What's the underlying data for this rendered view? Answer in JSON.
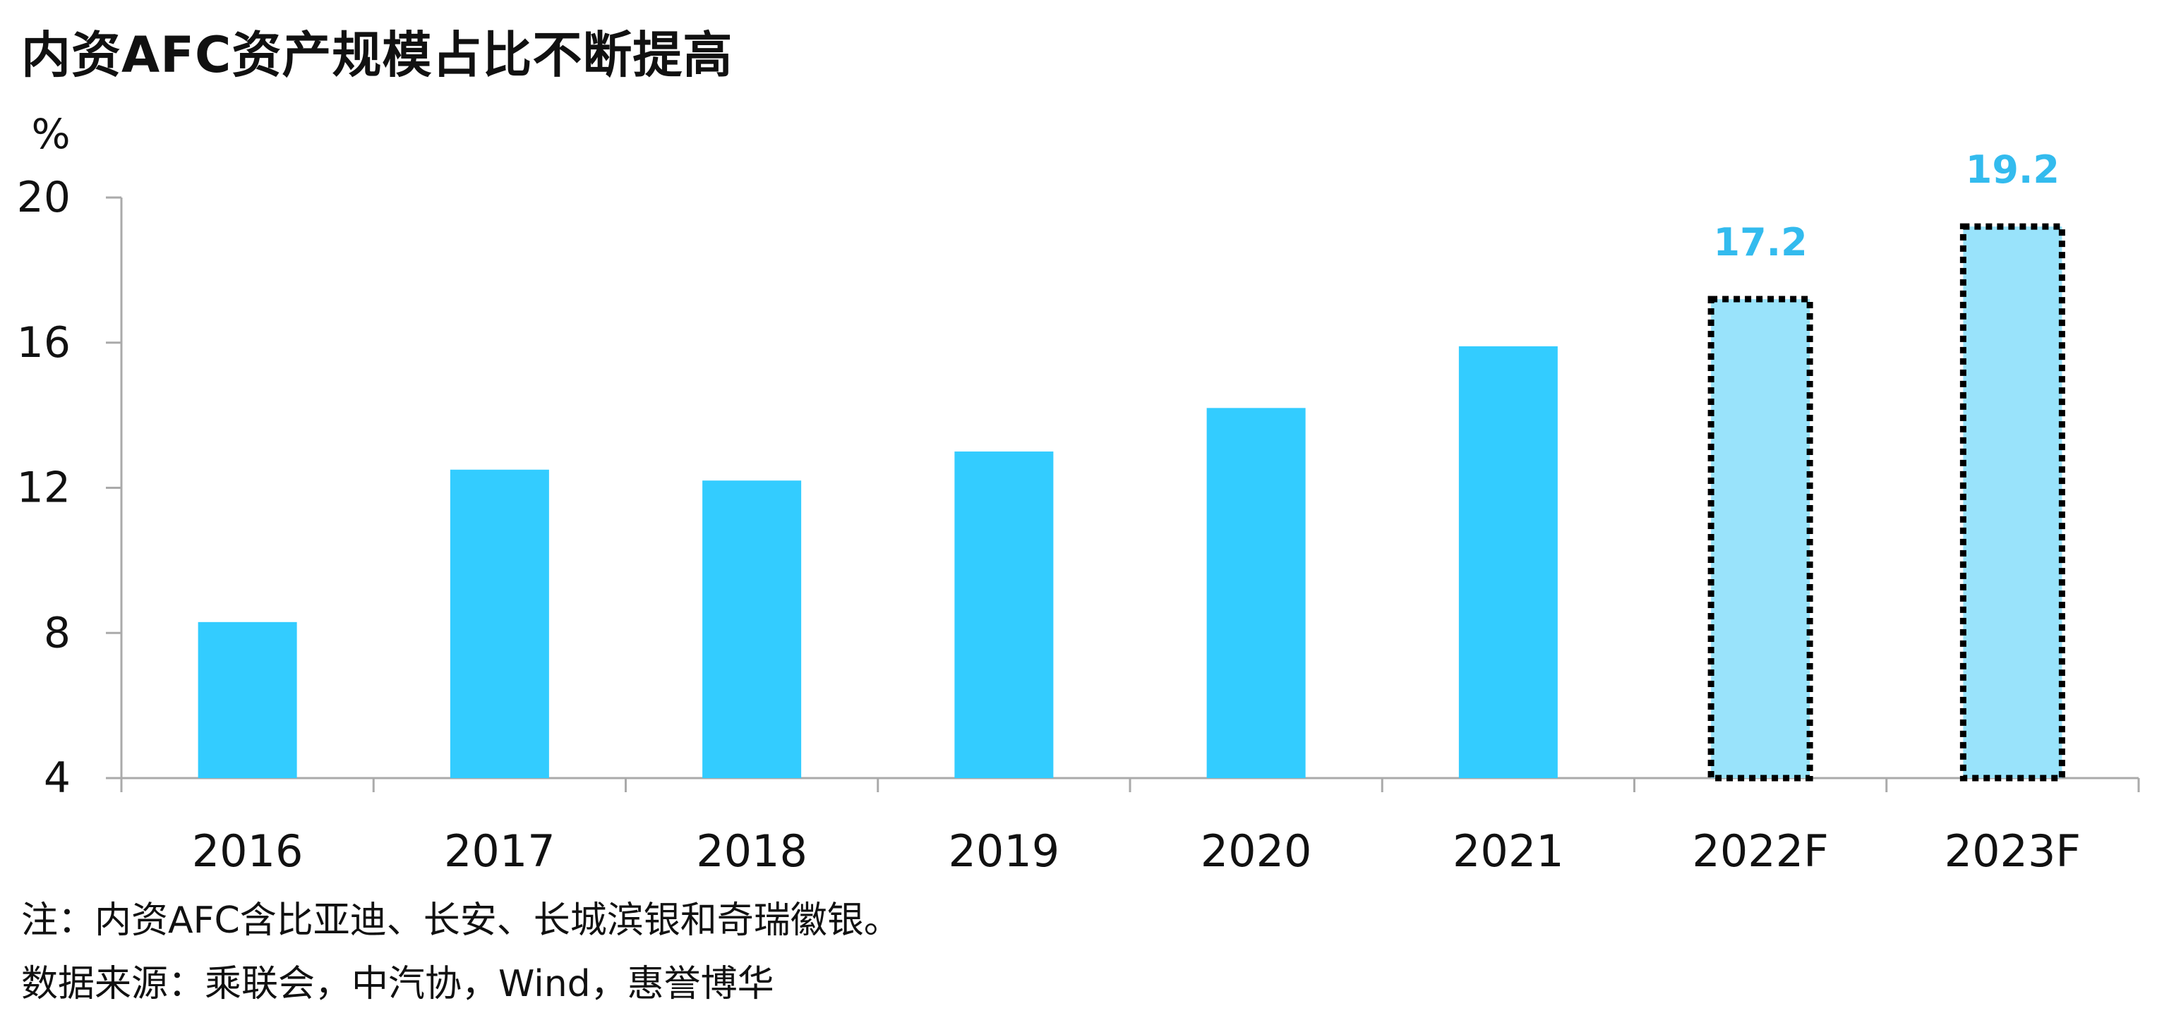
{
  "title": "内资AFC资产规模占比不断提高",
  "chart_data": {
    "type": "bar",
    "unit": "%",
    "categories": [
      "2016",
      "2017",
      "2018",
      "2019",
      "2020",
      "2021",
      "2022F",
      "2023F"
    ],
    "values": [
      8.3,
      12.5,
      12.2,
      13.0,
      14.2,
      15.9,
      17.2,
      19.2
    ],
    "forecast": [
      false,
      false,
      false,
      false,
      false,
      false,
      true,
      true
    ],
    "data_labels": [
      "",
      "",
      "",
      "",
      "",
      "",
      "17.2",
      "19.2"
    ],
    "ylim": [
      4,
      20
    ],
    "yticks": [
      4,
      8,
      12,
      16,
      20
    ],
    "grid": false,
    "colors": {
      "actual": "#33ccff",
      "forecast_fill": "#99e3fb",
      "forecast_border": "#000000",
      "label": "#33bbee",
      "axis": "#aaaaaa"
    }
  },
  "notes": {
    "note": "注：内资AFC含比亚迪、长安、长城滨银和奇瑞徽银。",
    "source": "数据来源：乘联会，中汽协，Wind，惠誉博华"
  }
}
